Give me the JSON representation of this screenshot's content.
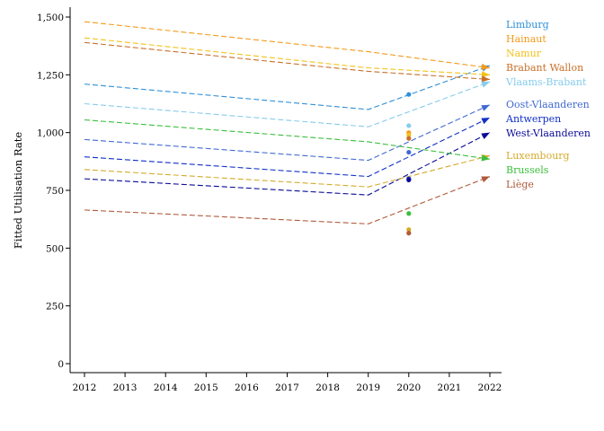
{
  "chart_data": {
    "type": "line",
    "title": "",
    "xlabel": "",
    "ylabel": "Fitted Utilisation Rate",
    "xlim": [
      2012,
      2022
    ],
    "ylim": [
      0,
      1500
    ],
    "x_ticks": [
      "2012",
      "2013",
      "2014",
      "2015",
      "2016",
      "2017",
      "2018",
      "2019",
      "2020",
      "2021",
      "2022"
    ],
    "y_ticks": [
      "0",
      "250",
      "500",
      "750",
      "1,000",
      "1,250",
      "1,500"
    ],
    "grid": false,
    "legend_placement": "right",
    "line_style": "dashed",
    "series": [
      {
        "name": "Limburg",
        "color": "#2f8fd8",
        "x": [
          2012,
          2019,
          2022
        ],
        "values": [
          1210,
          1100,
          1290
        ],
        "observed_2020": 1165
      },
      {
        "name": "Hainaut",
        "color": "#f39a1b",
        "x": [
          2012,
          2019,
          2022
        ],
        "values": [
          1480,
          1350,
          1280
        ],
        "observed_2020": 1000
      },
      {
        "name": "Namur",
        "color": "#f2c21b",
        "x": [
          2012,
          2019,
          2022
        ],
        "values": [
          1410,
          1280,
          1250
        ],
        "observed_2020": 990
      },
      {
        "name": "Brabant Wallon",
        "color": "#c8702a",
        "x": [
          2012,
          2019,
          2022
        ],
        "values": [
          1390,
          1265,
          1230
        ],
        "observed_2020": 975
      },
      {
        "name": "Vlaams-Brabant",
        "color": "#87cceb",
        "x": [
          2012,
          2019,
          2022
        ],
        "values": [
          1125,
          1025,
          1220
        ],
        "observed_2020": 1030
      },
      {
        "name": "Oost-Vlaanderen",
        "color": "#4169d2",
        "x": [
          2012,
          2019,
          2022
        ],
        "values": [
          970,
          880,
          1120
        ],
        "observed_2020": 915
      },
      {
        "name": "Antwerpen",
        "color": "#1030c8",
        "x": [
          2012,
          2019,
          2022
        ],
        "values": [
          895,
          810,
          1065
        ],
        "observed_2020": 800
      },
      {
        "name": "West-Vlaanderen",
        "color": "#0a0a96",
        "x": [
          2012,
          2019,
          2022
        ],
        "values": [
          800,
          730,
          1000
        ],
        "observed_2020": 795
      },
      {
        "name": "Luxembourg",
        "color": "#d4aa2a",
        "x": [
          2012,
          2019,
          2022
        ],
        "values": [
          840,
          765,
          900
        ],
        "observed_2020": 580
      },
      {
        "name": "Brussels",
        "color": "#3cbe3c",
        "x": [
          2012,
          2019,
          2022
        ],
        "values": [
          1055,
          960,
          885
        ],
        "observed_2020": 650
      },
      {
        "name": "Liège",
        "color": "#b05a3a",
        "x": [
          2012,
          2019,
          2022
        ],
        "values": [
          665,
          605,
          810
        ],
        "observed_2020": 565
      }
    ]
  }
}
